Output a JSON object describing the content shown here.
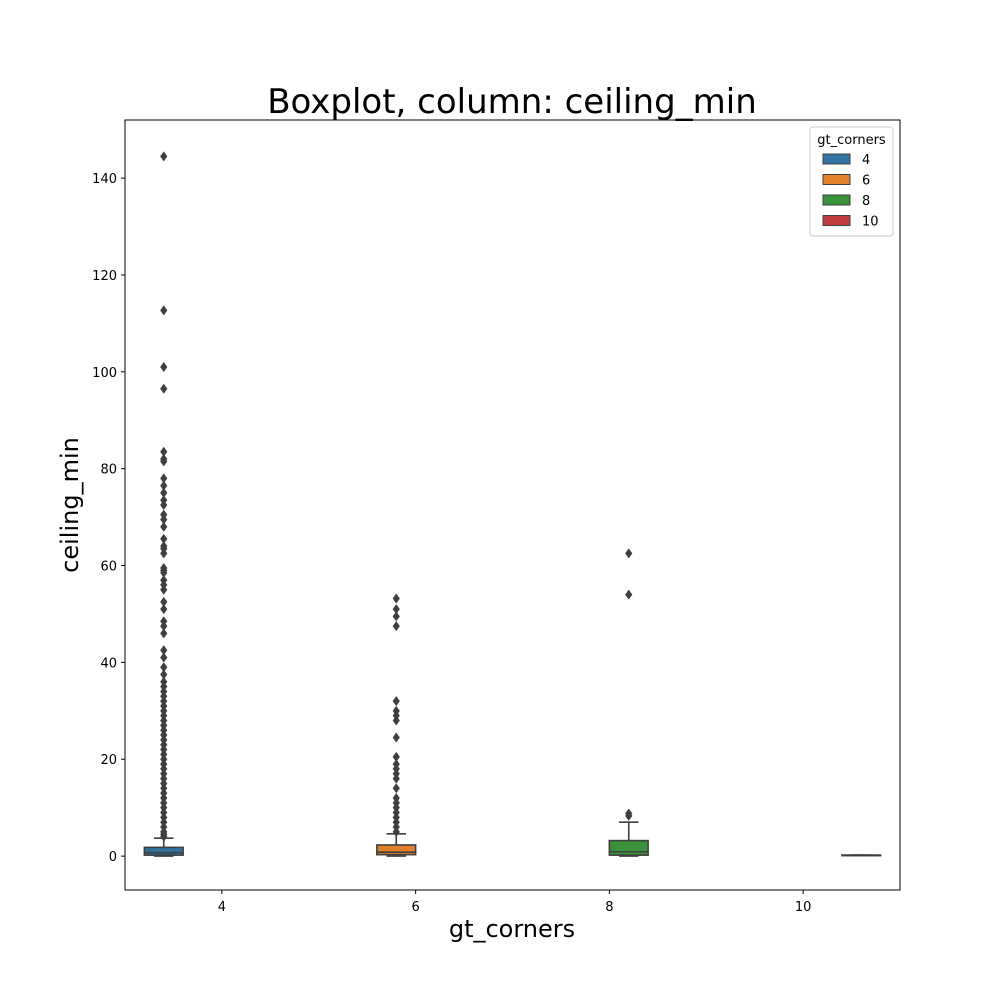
{
  "chart_data": {
    "type": "box",
    "title": "Boxplot, column: ceiling_min",
    "xlabel": "gt_corners",
    "ylabel": "ceiling_min",
    "categories": [
      "4",
      "6",
      "8",
      "10"
    ],
    "ylim": [
      -7,
      152
    ],
    "yticks": [
      0,
      20,
      40,
      60,
      80,
      100,
      120,
      140
    ],
    "grid": false,
    "legend": {
      "title": "gt_corners",
      "placement": "top-right",
      "entries": [
        "4",
        "6",
        "8",
        "10"
      ]
    },
    "series": [
      {
        "name": "4",
        "color": "#3274a1",
        "box": {
          "q1": 0.2,
          "median": 0.7,
          "q3": 1.8,
          "whisker_low": 0.0,
          "whisker_high": 3.7
        },
        "outliers": [
          144.5,
          112.7,
          101.0,
          96.5,
          83.5,
          82.0,
          81.5,
          78.0,
          76.5,
          75.0,
          73.5,
          72.5,
          70.5,
          69.5,
          68.0,
          65.5,
          64.0,
          63.5,
          62.5,
          59.5,
          59.0,
          58.5,
          57.0,
          56.0,
          55.0,
          52.5,
          51.0,
          48.5,
          47.5,
          46.0,
          42.5,
          41.0,
          39.0,
          37.5,
          36.0,
          35.0,
          34.0,
          33.0,
          32.0,
          31.0,
          30.0,
          29.0,
          28.0,
          27.0,
          26.0,
          25.0,
          24.0,
          23.0,
          22.0,
          21.0,
          20.0,
          19.0,
          18.0,
          17.0,
          16.0,
          15.0,
          14.0,
          13.0,
          12.0,
          11.0,
          10.0,
          9.0,
          8.0,
          7.0,
          6.0,
          5.0,
          4.5,
          4.0
        ]
      },
      {
        "name": "6",
        "color": "#e1812c",
        "box": {
          "q1": 0.3,
          "median": 0.8,
          "q3": 2.3,
          "whisker_low": 0.0,
          "whisker_high": 4.6
        },
        "outliers": [
          53.2,
          51.0,
          49.5,
          47.5,
          32.0,
          30.0,
          29.0,
          28.0,
          24.5,
          20.5,
          19.0,
          18.0,
          17.0,
          16.0,
          14.0,
          12.0,
          11.0,
          10.0,
          9.0,
          8.0,
          7.0,
          6.0,
          5.0
        ]
      },
      {
        "name": "8",
        "color": "#3a923a",
        "box": {
          "q1": 0.2,
          "median": 0.9,
          "q3": 3.2,
          "whisker_low": 0.0,
          "whisker_high": 7.0
        },
        "outliers": [
          62.5,
          54.0,
          8.8,
          8.3
        ]
      },
      {
        "name": "10",
        "color": "#c03d3e",
        "box": {
          "q1": 0.2,
          "median": 0.2,
          "q3": 0.2,
          "whisker_low": 0.2,
          "whisker_high": 0.2
        },
        "outliers": []
      }
    ]
  }
}
